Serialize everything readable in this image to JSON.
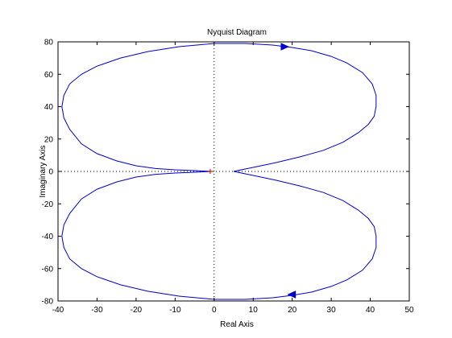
{
  "chart_data": {
    "type": "line",
    "title": "Nyquist Diagram",
    "xlabel": "Real Axis",
    "ylabel": "Imaginary Axis",
    "xlim": [
      -40,
      50
    ],
    "ylim": [
      -80,
      80
    ],
    "xticks": [
      -40,
      -30,
      -20,
      -10,
      0,
      10,
      20,
      30,
      40,
      50
    ],
    "yticks": [
      -80,
      -60,
      -40,
      -20,
      0,
      20,
      40,
      60,
      80
    ],
    "grid": false,
    "reference_lines": [
      "x=0 dotted",
      "y=0 dotted"
    ],
    "series": [
      {
        "color": "#0000cc",
        "points": [
          [
            -0.5,
            0
          ],
          [
            -5,
            0.5
          ],
          [
            -10,
            1
          ],
          [
            -15,
            1.8
          ],
          [
            -20,
            3.5
          ],
          [
            -25,
            6.5
          ],
          [
            -30,
            11
          ],
          [
            -34,
            17
          ],
          [
            -37,
            26
          ],
          [
            -38.5,
            33
          ],
          [
            -39,
            40
          ],
          [
            -38.5,
            47
          ],
          [
            -37,
            54
          ],
          [
            -34,
            60
          ],
          [
            -30,
            65
          ],
          [
            -24,
            70
          ],
          [
            -17,
            74
          ],
          [
            -9,
            77
          ],
          [
            0,
            79
          ],
          [
            8,
            79
          ],
          [
            15,
            78
          ],
          [
            20,
            76.5
          ],
          [
            25,
            74.5
          ],
          [
            30,
            71
          ],
          [
            34,
            67
          ],
          [
            38,
            61
          ],
          [
            40.5,
            54
          ],
          [
            41.5,
            47
          ],
          [
            41.5,
            40
          ],
          [
            41,
            34
          ],
          [
            39.5,
            29
          ],
          [
            37,
            24
          ],
          [
            33,
            18
          ],
          [
            28,
            13
          ],
          [
            22,
            9
          ],
          [
            16,
            5.5
          ],
          [
            11,
            3
          ],
          [
            8,
            1.5
          ],
          [
            6,
            0.5
          ],
          [
            5,
            0
          ]
        ]
      },
      {
        "color": "#0000cc",
        "points": [
          [
            5,
            0
          ],
          [
            6,
            -0.5
          ],
          [
            8,
            -1.5
          ],
          [
            11,
            -3
          ],
          [
            16,
            -5.5
          ],
          [
            22,
            -9
          ],
          [
            28,
            -13
          ],
          [
            33,
            -18
          ],
          [
            37,
            -24
          ],
          [
            39.5,
            -29
          ],
          [
            41,
            -34
          ],
          [
            41.5,
            -40
          ],
          [
            41.5,
            -47
          ],
          [
            40.5,
            -54
          ],
          [
            38,
            -61
          ],
          [
            34,
            -67
          ],
          [
            30,
            -71
          ],
          [
            25,
            -74.5
          ],
          [
            20,
            -76.5
          ],
          [
            15,
            -78
          ],
          [
            8,
            -79
          ],
          [
            0,
            -79
          ],
          [
            -9,
            -77
          ],
          [
            -17,
            -74
          ],
          [
            -24,
            -70
          ],
          [
            -30,
            -65
          ],
          [
            -34,
            -60
          ],
          [
            -37,
            -54
          ],
          [
            -38.5,
            -47
          ],
          [
            -39,
            -40
          ],
          [
            -38.5,
            -33
          ],
          [
            -37,
            -26
          ],
          [
            -34,
            -17
          ],
          [
            -30,
            -11
          ],
          [
            -25,
            -6.5
          ],
          [
            -20,
            -3.5
          ],
          [
            -15,
            -1.8
          ],
          [
            -10,
            -1
          ],
          [
            -5,
            -0.5
          ],
          [
            -0.5,
            0
          ]
        ]
      }
    ],
    "arrows": [
      {
        "x": 18,
        "y": 77,
        "direction": "right"
      },
      {
        "x": 20,
        "y": -76,
        "direction": "left"
      }
    ],
    "markers": [
      {
        "x": -1,
        "y": 0,
        "symbol": "+"
      }
    ]
  }
}
